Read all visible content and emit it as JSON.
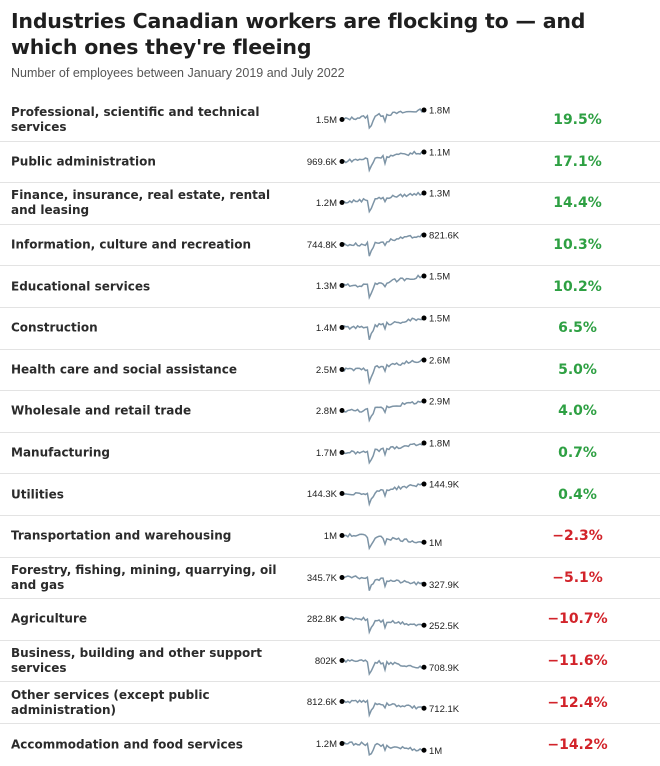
{
  "header": {
    "title": "Industries Canadian workers are flocking to — and which ones they're fleeing",
    "subtitle": "Number of employees between January 2019 and July 2022"
  },
  "colors": {
    "line": "#7d94a6",
    "positive": "#2ea043",
    "negative": "#d2232a"
  },
  "chart_data": {
    "type": "line",
    "title": "Industries Canadian workers are flocking to — and which ones they're fleeing",
    "subtitle": "Number of employees between January 2019 and July 2022",
    "period": [
      "January 2019",
      "July 2022"
    ],
    "series": [
      {
        "name": "Professional, scientific and technical services",
        "start": "1.5M",
        "end": "1.8M",
        "start_value": 1500000,
        "end_value": 1800000,
        "change": "19.5%",
        "direction": "up"
      },
      {
        "name": "Public administration",
        "start": "969.6K",
        "end": "1.1M",
        "start_value": 969600,
        "end_value": 1100000,
        "change": "17.1%",
        "direction": "up"
      },
      {
        "name": "Finance, insurance, real estate, rental and leasing",
        "start": "1.2M",
        "end": "1.3M",
        "start_value": 1200000,
        "end_value": 1300000,
        "change": "14.4%",
        "direction": "up"
      },
      {
        "name": "Information, culture and recreation",
        "start": "744.8K",
        "end": "821.6K",
        "start_value": 744800,
        "end_value": 821600,
        "change": "10.3%",
        "direction": "up"
      },
      {
        "name": "Educational services",
        "start": "1.3M",
        "end": "1.5M",
        "start_value": 1300000,
        "end_value": 1500000,
        "change": "10.2%",
        "direction": "up"
      },
      {
        "name": "Construction",
        "start": "1.4M",
        "end": "1.5M",
        "start_value": 1400000,
        "end_value": 1500000,
        "change": "6.5%",
        "direction": "up"
      },
      {
        "name": "Health care and social assistance",
        "start": "2.5M",
        "end": "2.6M",
        "start_value": 2500000,
        "end_value": 2600000,
        "change": "5.0%",
        "direction": "up"
      },
      {
        "name": "Wholesale and retail trade",
        "start": "2.8M",
        "end": "2.9M",
        "start_value": 2800000,
        "end_value": 2900000,
        "change": "4.0%",
        "direction": "up"
      },
      {
        "name": "Manufacturing",
        "start": "1.7M",
        "end": "1.8M",
        "start_value": 1700000,
        "end_value": 1800000,
        "change": "0.7%",
        "direction": "up"
      },
      {
        "name": "Utilities",
        "start": "144.3K",
        "end": "144.9K",
        "start_value": 144300,
        "end_value": 144900,
        "change": "0.4%",
        "direction": "up"
      },
      {
        "name": "Transportation and warehousing",
        "start": "1M",
        "end": "1M",
        "start_value": 1000000,
        "end_value": 1000000,
        "change": "−2.3%",
        "direction": "down"
      },
      {
        "name": "Forestry, fishing, mining, quarrying, oil and gas",
        "start": "345.7K",
        "end": "327.9K",
        "start_value": 345700,
        "end_value": 327900,
        "change": "−5.1%",
        "direction": "down"
      },
      {
        "name": "Agriculture",
        "start": "282.8K",
        "end": "252.5K",
        "start_value": 282800,
        "end_value": 252500,
        "change": "−10.7%",
        "direction": "down"
      },
      {
        "name": "Business, building and other support services",
        "start": "802K",
        "end": "708.9K",
        "start_value": 802000,
        "end_value": 708900,
        "change": "−11.6%",
        "direction": "down"
      },
      {
        "name": "Other services (except public administration)",
        "start": "812.6K",
        "end": "712.1K",
        "start_value": 812600,
        "end_value": 712100,
        "change": "−12.4%",
        "direction": "down"
      },
      {
        "name": "Accommodation and food services",
        "start": "1.2M",
        "end": "1M",
        "start_value": 1200000,
        "end_value": 1000000,
        "change": "−14.2%",
        "direction": "down"
      }
    ]
  }
}
